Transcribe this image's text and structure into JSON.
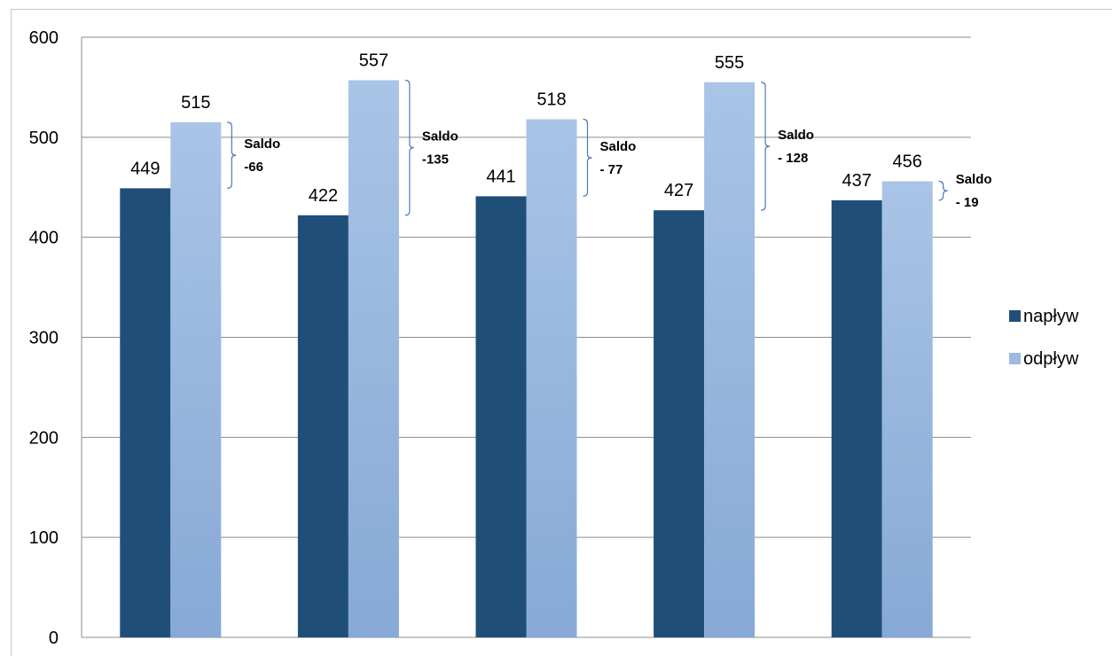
{
  "chart_data": {
    "type": "bar",
    "categories": [
      "",
      "",
      "",
      "",
      ""
    ],
    "series": [
      {
        "name": "napływ",
        "values": [
          449,
          422,
          441,
          427,
          437
        ],
        "color": "#1f4e79"
      },
      {
        "name": "odpływ",
        "values": [
          515,
          557,
          518,
          555,
          456
        ],
        "color": "#9dbbe0"
      }
    ],
    "ylim": [
      0,
      600
    ],
    "yticks": [
      "0",
      "100",
      "200",
      "300",
      "400",
      "500",
      "600"
    ],
    "grid": true,
    "legend_position": "right",
    "annotations": [
      {
        "line1": "Saldo",
        "line2": "-66"
      },
      {
        "line1": "Saldo",
        "line2": "-135"
      },
      {
        "line1": "Saldo",
        "line2": "- 77"
      },
      {
        "line1": "Saldo",
        "line2": "- 128"
      },
      {
        "line1": "Saldo",
        "line2": "- 19"
      }
    ]
  }
}
